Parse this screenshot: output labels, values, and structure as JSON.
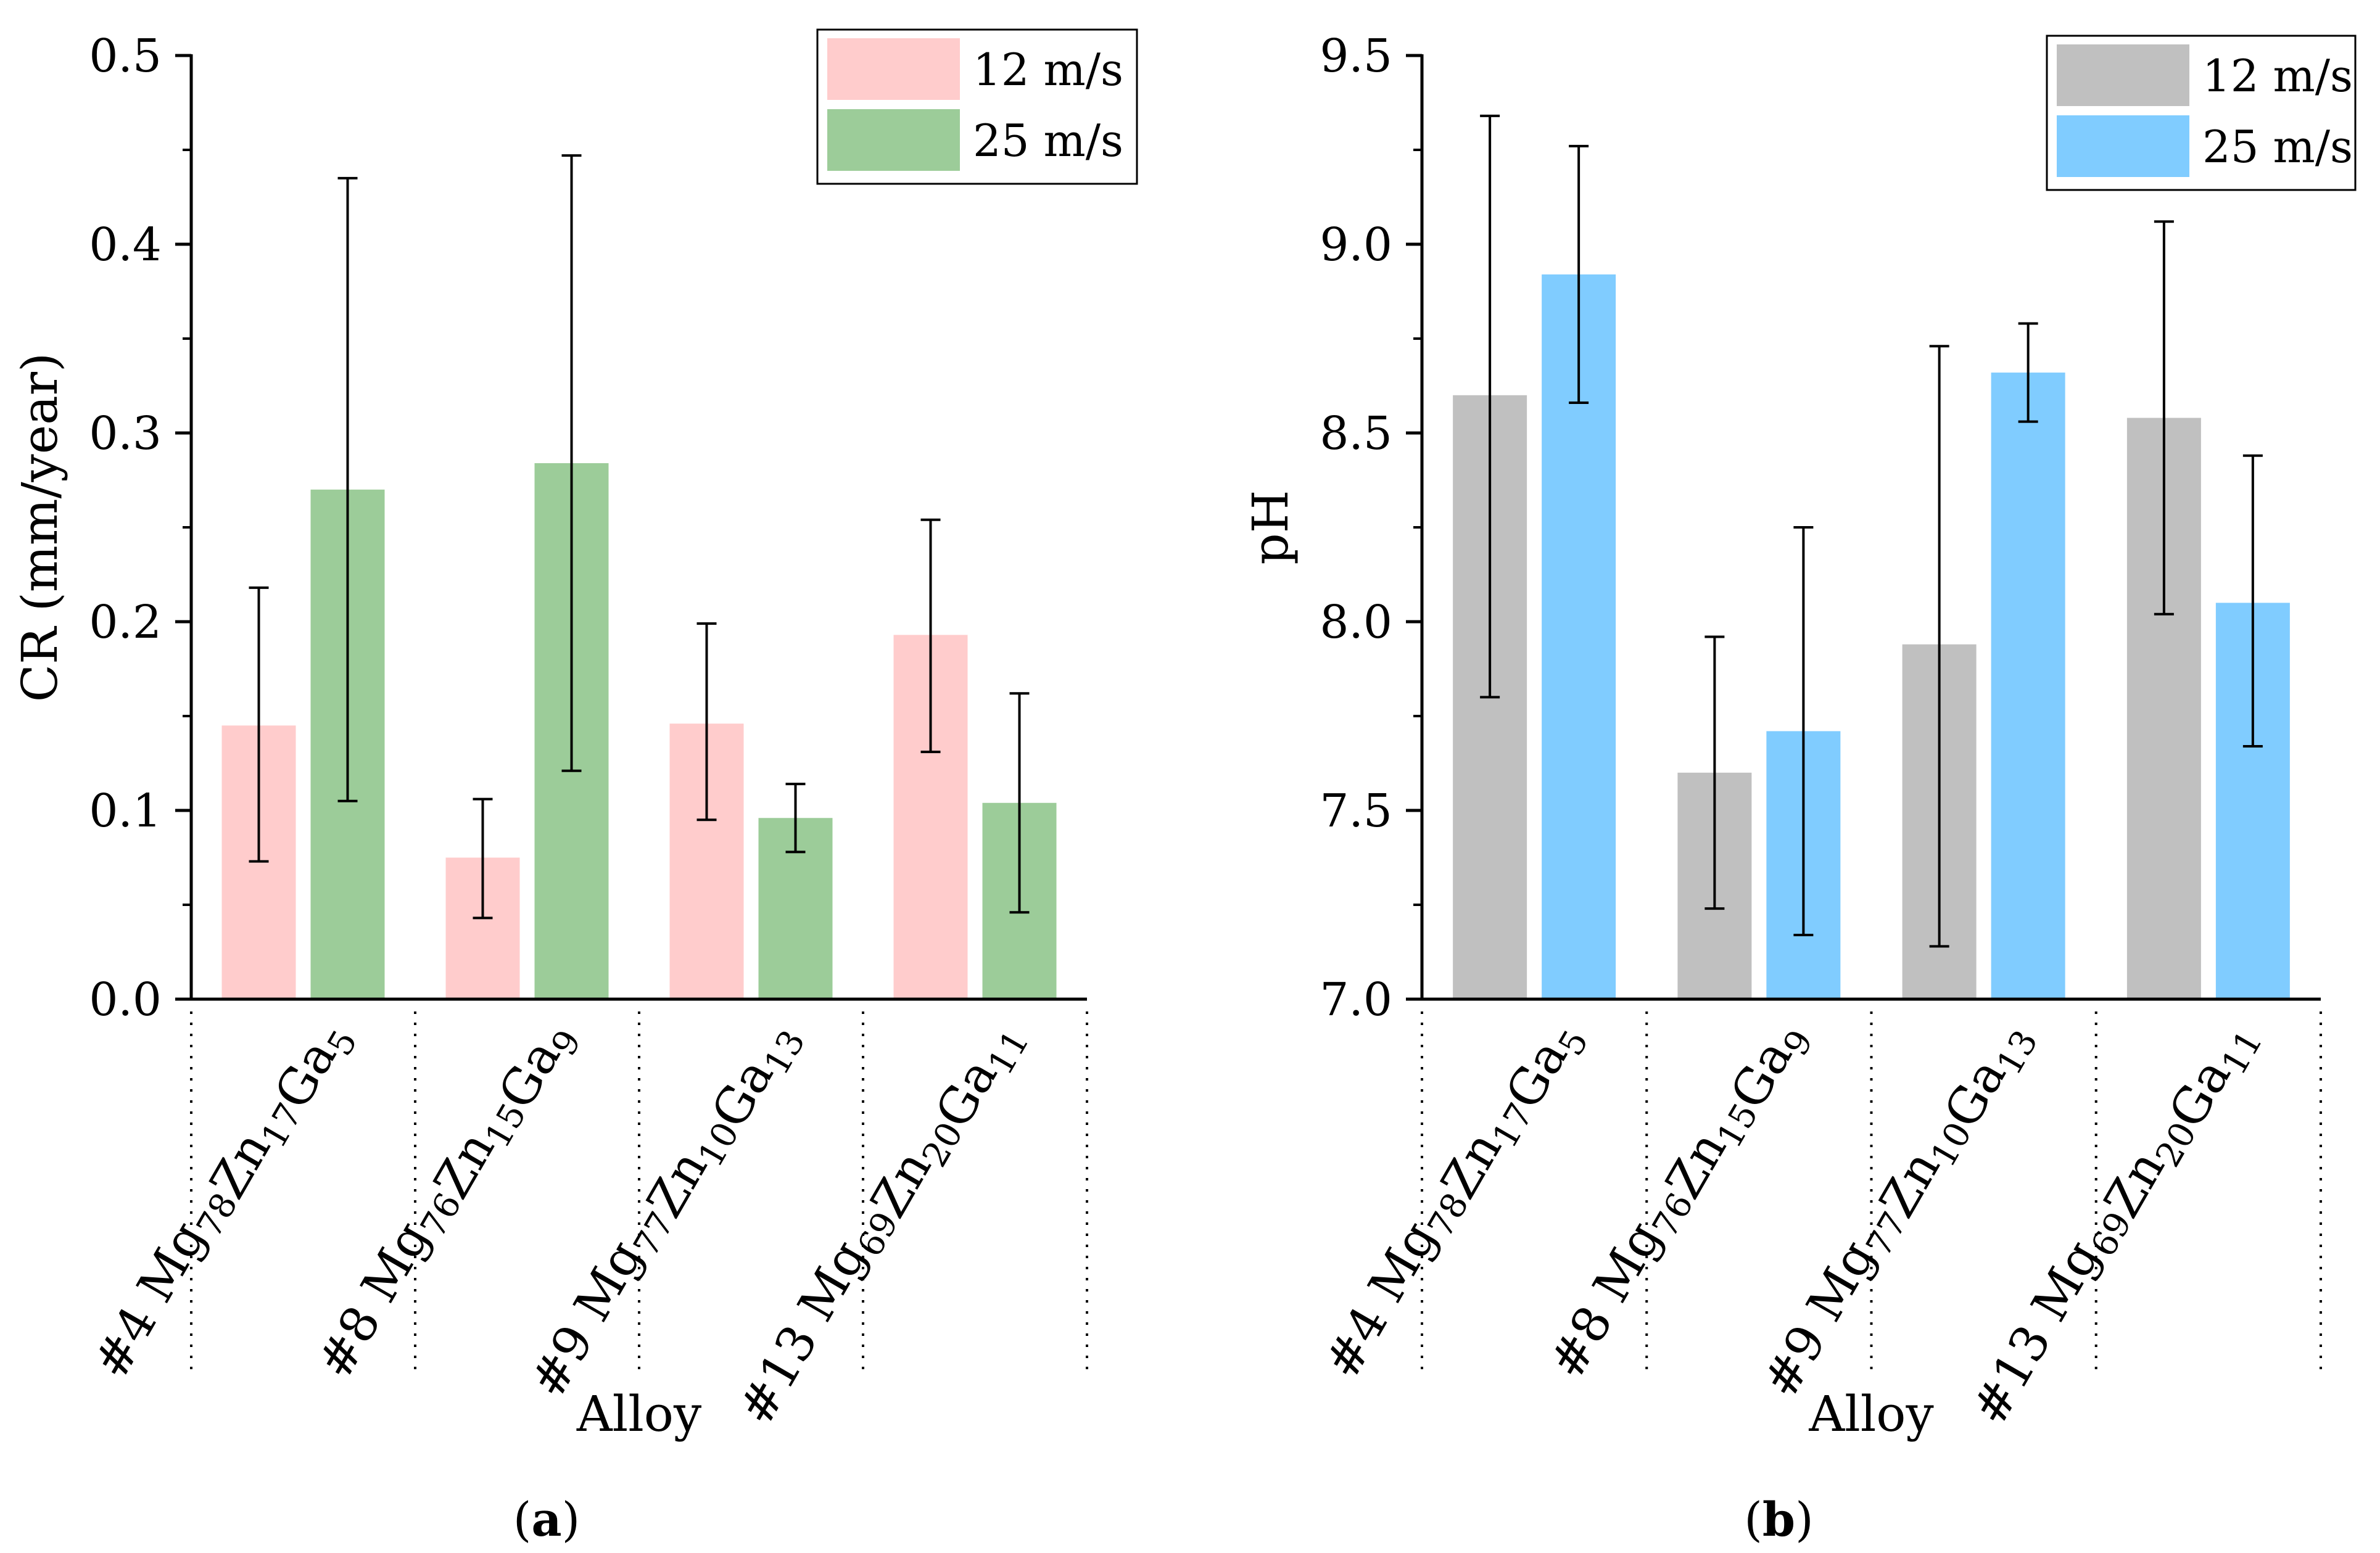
{
  "chart_data": [
    {
      "type": "bar",
      "panel": "a",
      "panel_label": "(a)",
      "ylabel": "CR (mm/year)",
      "xlabel": "Alloy",
      "ylim": [
        0,
        0.5
      ],
      "yticks": [
        "0.0",
        "0.1",
        "0.2",
        "0.3",
        "0.4",
        "0.5"
      ],
      "categories": [
        {
          "prefix": "#4 ",
          "parts": [
            {
              "t": "Mg",
              "s": "78"
            },
            {
              "t": "Zn",
              "s": "17"
            },
            {
              "t": "Ga",
              "s": "5"
            }
          ]
        },
        {
          "prefix": "#8 ",
          "parts": [
            {
              "t": "Mg",
              "s": "76"
            },
            {
              "t": "Zn",
              "s": "15"
            },
            {
              "t": "Ga",
              "s": "9"
            }
          ]
        },
        {
          "prefix": "#9 ",
          "parts": [
            {
              "t": "Mg",
              "s": "77"
            },
            {
              "t": "Zn",
              "s": "10"
            },
            {
              "t": "Ga",
              "s": "13"
            }
          ]
        },
        {
          "prefix": "#13 ",
          "parts": [
            {
              "t": "Mg",
              "s": "69"
            },
            {
              "t": "Zn",
              "s": "20"
            },
            {
              "t": "Ga",
              "s": "11"
            }
          ]
        }
      ],
      "series": [
        {
          "name": "12 m/s",
          "color": "#ffcccc",
          "values": [
            0.145,
            0.075,
            0.146,
            0.193
          ],
          "err_low": [
            0.073,
            0.043,
            0.095,
            0.131
          ],
          "err_high": [
            0.218,
            0.106,
            0.199,
            0.254
          ]
        },
        {
          "name": "25 m/s",
          "color": "#9ccc99",
          "values": [
            0.27,
            0.284,
            0.096,
            0.104
          ],
          "err_low": [
            0.105,
            0.121,
            0.078,
            0.046
          ],
          "err_high": [
            0.435,
            0.447,
            0.114,
            0.162
          ]
        }
      ],
      "legend": "top-right"
    },
    {
      "type": "bar",
      "panel": "b",
      "panel_label": "(b)",
      "ylabel": "pH",
      "xlabel": "Alloy",
      "ylim": [
        7.0,
        9.5
      ],
      "yticks": [
        "7.0",
        "7.5",
        "8.0",
        "8.5",
        "9.0",
        "9.5"
      ],
      "categories": [
        {
          "prefix": "#4 ",
          "parts": [
            {
              "t": "Mg",
              "s": "78"
            },
            {
              "t": "Zn",
              "s": "17"
            },
            {
              "t": "Ga",
              "s": "5"
            }
          ]
        },
        {
          "prefix": "#8 ",
          "parts": [
            {
              "t": "Mg",
              "s": "76"
            },
            {
              "t": "Zn",
              "s": "15"
            },
            {
              "t": "Ga",
              "s": "9"
            }
          ]
        },
        {
          "prefix": "#9 ",
          "parts": [
            {
              "t": "Mg",
              "s": "77"
            },
            {
              "t": "Zn",
              "s": "10"
            },
            {
              "t": "Ga",
              "s": "13"
            }
          ]
        },
        {
          "prefix": "#13 ",
          "parts": [
            {
              "t": "Mg",
              "s": "69"
            },
            {
              "t": "Zn",
              "s": "20"
            },
            {
              "t": "Ga",
              "s": "11"
            }
          ]
        }
      ],
      "series": [
        {
          "name": "12 m/s",
          "color": "#c0c0c0",
          "values": [
            8.6,
            7.6,
            7.94,
            8.54
          ],
          "err_low": [
            7.8,
            7.24,
            7.14,
            8.02
          ],
          "err_high": [
            9.34,
            7.96,
            8.73,
            9.06
          ]
        },
        {
          "name": "25 m/s",
          "color": "#80ccff",
          "values": [
            8.92,
            7.71,
            8.66,
            8.05
          ],
          "err_low": [
            8.58,
            7.17,
            8.53,
            7.67
          ],
          "err_high": [
            9.26,
            8.25,
            8.79,
            8.44
          ]
        }
      ],
      "legend": "top-right"
    }
  ]
}
